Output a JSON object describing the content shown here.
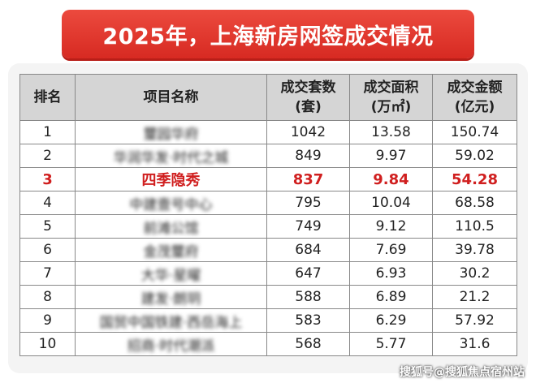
{
  "title": "2025年，上海新房网签成交情况",
  "headers": [
    {
      "line1": "排名",
      "line2": ""
    },
    {
      "line1": "项目名称",
      "line2": ""
    },
    {
      "line1": "成交套数",
      "line2": "(套)"
    },
    {
      "line1": "成交面积",
      "line2": "(万㎡)"
    },
    {
      "line1": "成交金额",
      "line2": "(亿元)"
    }
  ],
  "rows": [
    {
      "rank": "1",
      "name": "璽园华府",
      "units": "1042",
      "area": "13.58",
      "amount": "150.74",
      "highlight": false
    },
    {
      "rank": "2",
      "name": "华润华发·时代之城",
      "units": "849",
      "area": "9.97",
      "amount": "59.02",
      "highlight": false
    },
    {
      "rank": "3",
      "name": "四季隐秀",
      "units": "837",
      "area": "9.84",
      "amount": "54.28",
      "highlight": true
    },
    {
      "rank": "4",
      "name": "中建壹号中心",
      "units": "795",
      "area": "10.04",
      "amount": "68.58",
      "highlight": false
    },
    {
      "rank": "5",
      "name": "前滩公馆",
      "units": "749",
      "area": "9.12",
      "amount": "110.5",
      "highlight": false
    },
    {
      "rank": "6",
      "name": "金茂璽府",
      "units": "684",
      "area": "7.69",
      "amount": "39.78",
      "highlight": false
    },
    {
      "rank": "7",
      "name": "大华·星曜",
      "units": "647",
      "area": "6.93",
      "amount": "30.2",
      "highlight": false
    },
    {
      "rank": "8",
      "name": "建发·朗玥",
      "units": "588",
      "area": "6.89",
      "amount": "21.2",
      "highlight": false
    },
    {
      "rank": "9",
      "name": "国贸中国铁建·西岳海上",
      "units": "583",
      "area": "6.29",
      "amount": "57.92",
      "highlight": false
    },
    {
      "rank": "10",
      "name": "招商·时代潮派",
      "units": "568",
      "area": "5.77",
      "amount": "31.6",
      "highlight": false
    }
  ],
  "watermark": "搜狐号@搜狐焦点宿州站",
  "colors": {
    "banner": "#d72a22",
    "highlight": "#d01f1f",
    "header_bg": "#d5d5d5"
  }
}
